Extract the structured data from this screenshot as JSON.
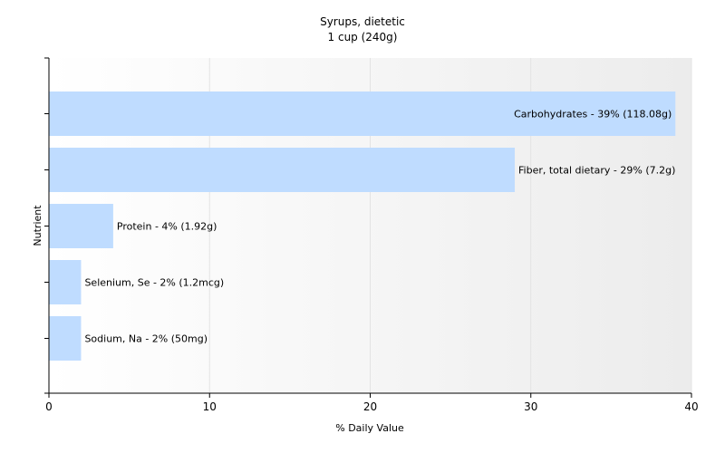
{
  "chart_data": {
    "type": "bar",
    "orientation": "horizontal",
    "title": "Syrups, dietetic",
    "subtitle": "1 cup (240g)",
    "xlabel": "% Daily Value",
    "ylabel": "Nutrient",
    "xlim": [
      0,
      40
    ],
    "xticks": [
      0,
      10,
      20,
      30,
      40
    ],
    "grid": true,
    "legend": "none",
    "bar_color": "#bfdcff",
    "categories": [
      "Carbohydrates",
      "Fiber, total dietary",
      "Protein",
      "Selenium, Se",
      "Sodium, Na"
    ],
    "values": [
      39,
      29,
      4,
      2,
      2
    ],
    "labels": [
      "Carbohydrates - 39% (118.08g)",
      "Fiber, total dietary - 29% (7.2g)",
      "Protein - 4% (1.92g)",
      "Selenium, Se - 2% (1.2mcg)",
      "Sodium, Na - 2% (50mg)"
    ]
  }
}
